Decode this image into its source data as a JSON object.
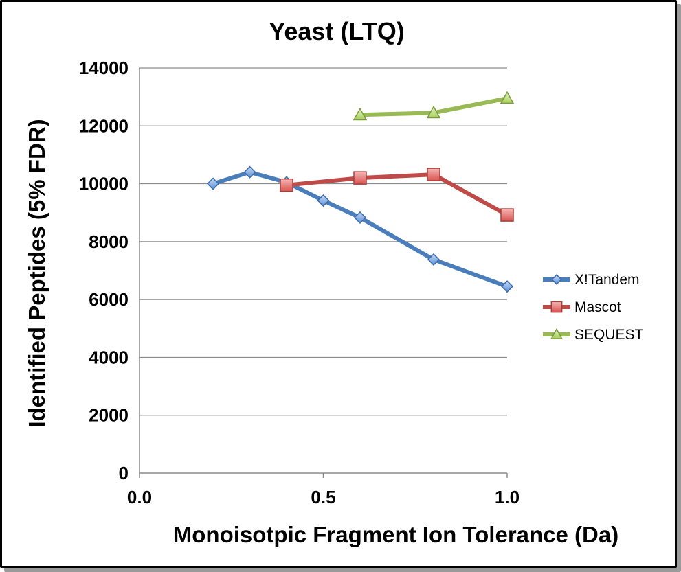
{
  "chart_data": {
    "type": "line",
    "title": "Yeast (LTQ)",
    "xlabel": "Monoisotpic Fragment Ion Tolerance (Da)",
    "ylabel": "Identified Peptides (5% FDR)",
    "xlim": [
      0.0,
      1.0
    ],
    "ylim": [
      0,
      14000
    ],
    "xticks": [
      "0.0",
      "0.5",
      "1.0"
    ],
    "xtick_values": [
      0.0,
      0.5,
      1.0
    ],
    "yticks": [
      "0",
      "2000",
      "4000",
      "6000",
      "8000",
      "10000",
      "12000",
      "14000"
    ],
    "ytick_values": [
      0,
      2000,
      4000,
      6000,
      8000,
      10000,
      12000,
      14000
    ],
    "grid": "horizontal",
    "legend_position": "right",
    "series": [
      {
        "name": "X!Tandem",
        "color": "#4a7ebb",
        "marker": "diamond",
        "x": [
          0.2,
          0.3,
          0.4,
          0.5,
          0.6,
          0.8,
          1.0
        ],
        "y": [
          10000,
          10400,
          10050,
          9420,
          8830,
          7380,
          6450
        ]
      },
      {
        "name": "Mascot",
        "color": "#be4b48",
        "marker": "square",
        "x": [
          0.4,
          0.6,
          0.8,
          1.0
        ],
        "y": [
          9950,
          10200,
          10320,
          8920
        ]
      },
      {
        "name": "SEQUEST",
        "color": "#98b954",
        "marker": "triangle",
        "x": [
          0.6,
          0.8,
          1.0
        ],
        "y": [
          12380,
          12450,
          12950
        ]
      }
    ]
  }
}
